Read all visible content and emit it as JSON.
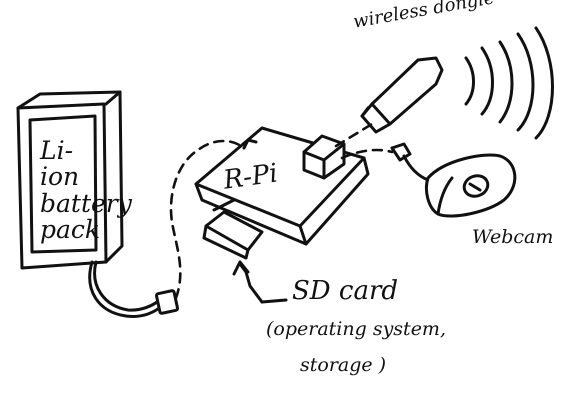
{
  "battery": {
    "label": "Li-\nion\nbattery\npack"
  },
  "rpi": {
    "label": "R-Pi"
  },
  "dongle": {
    "label": "wireless dongle"
  },
  "webcam": {
    "label": "Webcam"
  },
  "sdcard": {
    "label": "SD card",
    "note_line1": "(operating system,",
    "note_line2": "storage )"
  },
  "colors": {
    "ink": "#111111",
    "paper": "#ffffff"
  }
}
